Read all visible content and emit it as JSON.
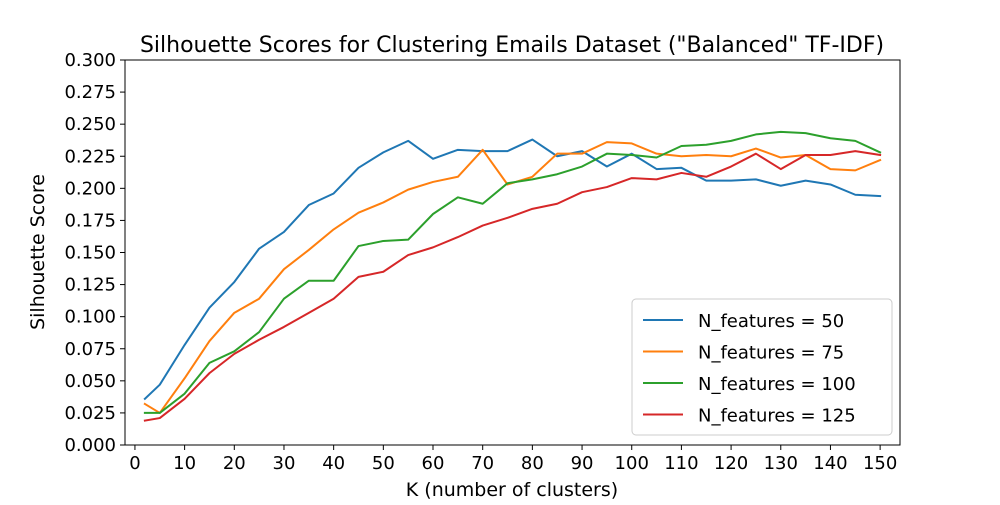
{
  "chart_data": {
    "type": "line",
    "title": "Silhouette Scores for Clustering Emails Dataset (\"Balanced\" TF-IDF)",
    "xlabel": "K (number of clusters)",
    "ylabel": "Silhouette Score",
    "xlim": [
      -2,
      154
    ],
    "ylim": [
      0,
      0.3
    ],
    "x_ticks": [
      0,
      10,
      20,
      30,
      40,
      50,
      60,
      70,
      80,
      90,
      100,
      110,
      120,
      130,
      140,
      150
    ],
    "y_ticks": [
      0,
      0.025,
      0.05,
      0.075,
      0.1,
      0.125,
      0.15,
      0.175,
      0.2,
      0.225,
      0.25,
      0.275,
      0.3
    ],
    "y_tick_labels": [
      "0.000",
      "0.025",
      "0.050",
      "0.075",
      "0.100",
      "0.125",
      "0.150",
      "0.175",
      "0.200",
      "0.225",
      "0.250",
      "0.275",
      "0.300"
    ],
    "grid": false,
    "legend_position": "lower-right",
    "x": [
      2,
      5,
      10,
      15,
      20,
      25,
      30,
      35,
      40,
      45,
      50,
      55,
      60,
      65,
      70,
      75,
      80,
      85,
      90,
      95,
      100,
      105,
      110,
      115,
      120,
      125,
      130,
      135,
      140,
      145,
      150
    ],
    "series": [
      {
        "name": "N_features = 50",
        "color": "#1f77b4",
        "values": [
          0.036,
          0.047,
          0.078,
          0.107,
          0.127,
          0.153,
          0.166,
          0.187,
          0.196,
          0.216,
          0.228,
          0.237,
          0.223,
          0.23,
          0.229,
          0.229,
          0.238,
          0.225,
          0.229,
          0.217,
          0.227,
          0.215,
          0.216,
          0.206,
          0.206,
          0.207,
          0.202,
          0.206,
          0.203,
          0.195,
          0.194
        ]
      },
      {
        "name": "N_features = 75",
        "color": "#ff7f0e",
        "values": [
          0.032,
          0.025,
          0.052,
          0.081,
          0.103,
          0.114,
          0.137,
          0.152,
          0.168,
          0.181,
          0.189,
          0.199,
          0.205,
          0.209,
          0.23,
          0.203,
          0.209,
          0.227,
          0.227,
          0.236,
          0.235,
          0.227,
          0.225,
          0.226,
          0.225,
          0.231,
          0.224,
          0.226,
          0.215,
          0.214,
          0.222
        ]
      },
      {
        "name": "N_features = 100",
        "color": "#2ca02c",
        "values": [
          0.025,
          0.025,
          0.04,
          0.064,
          0.073,
          0.088,
          0.114,
          0.128,
          0.128,
          0.155,
          0.159,
          0.16,
          0.18,
          0.193,
          0.188,
          0.204,
          0.207,
          0.211,
          0.217,
          0.227,
          0.226,
          0.224,
          0.233,
          0.234,
          0.237,
          0.242,
          0.244,
          0.243,
          0.239,
          0.237,
          0.228
        ]
      },
      {
        "name": "N_features = 125",
        "color": "#d62728",
        "values": [
          0.019,
          0.021,
          0.036,
          0.056,
          0.071,
          0.082,
          0.092,
          0.103,
          0.114,
          0.131,
          0.135,
          0.148,
          0.154,
          0.162,
          0.171,
          0.177,
          0.184,
          0.188,
          0.197,
          0.201,
          0.208,
          0.207,
          0.212,
          0.209,
          0.217,
          0.227,
          0.215,
          0.226,
          0.226,
          0.229,
          0.226
        ]
      }
    ]
  }
}
